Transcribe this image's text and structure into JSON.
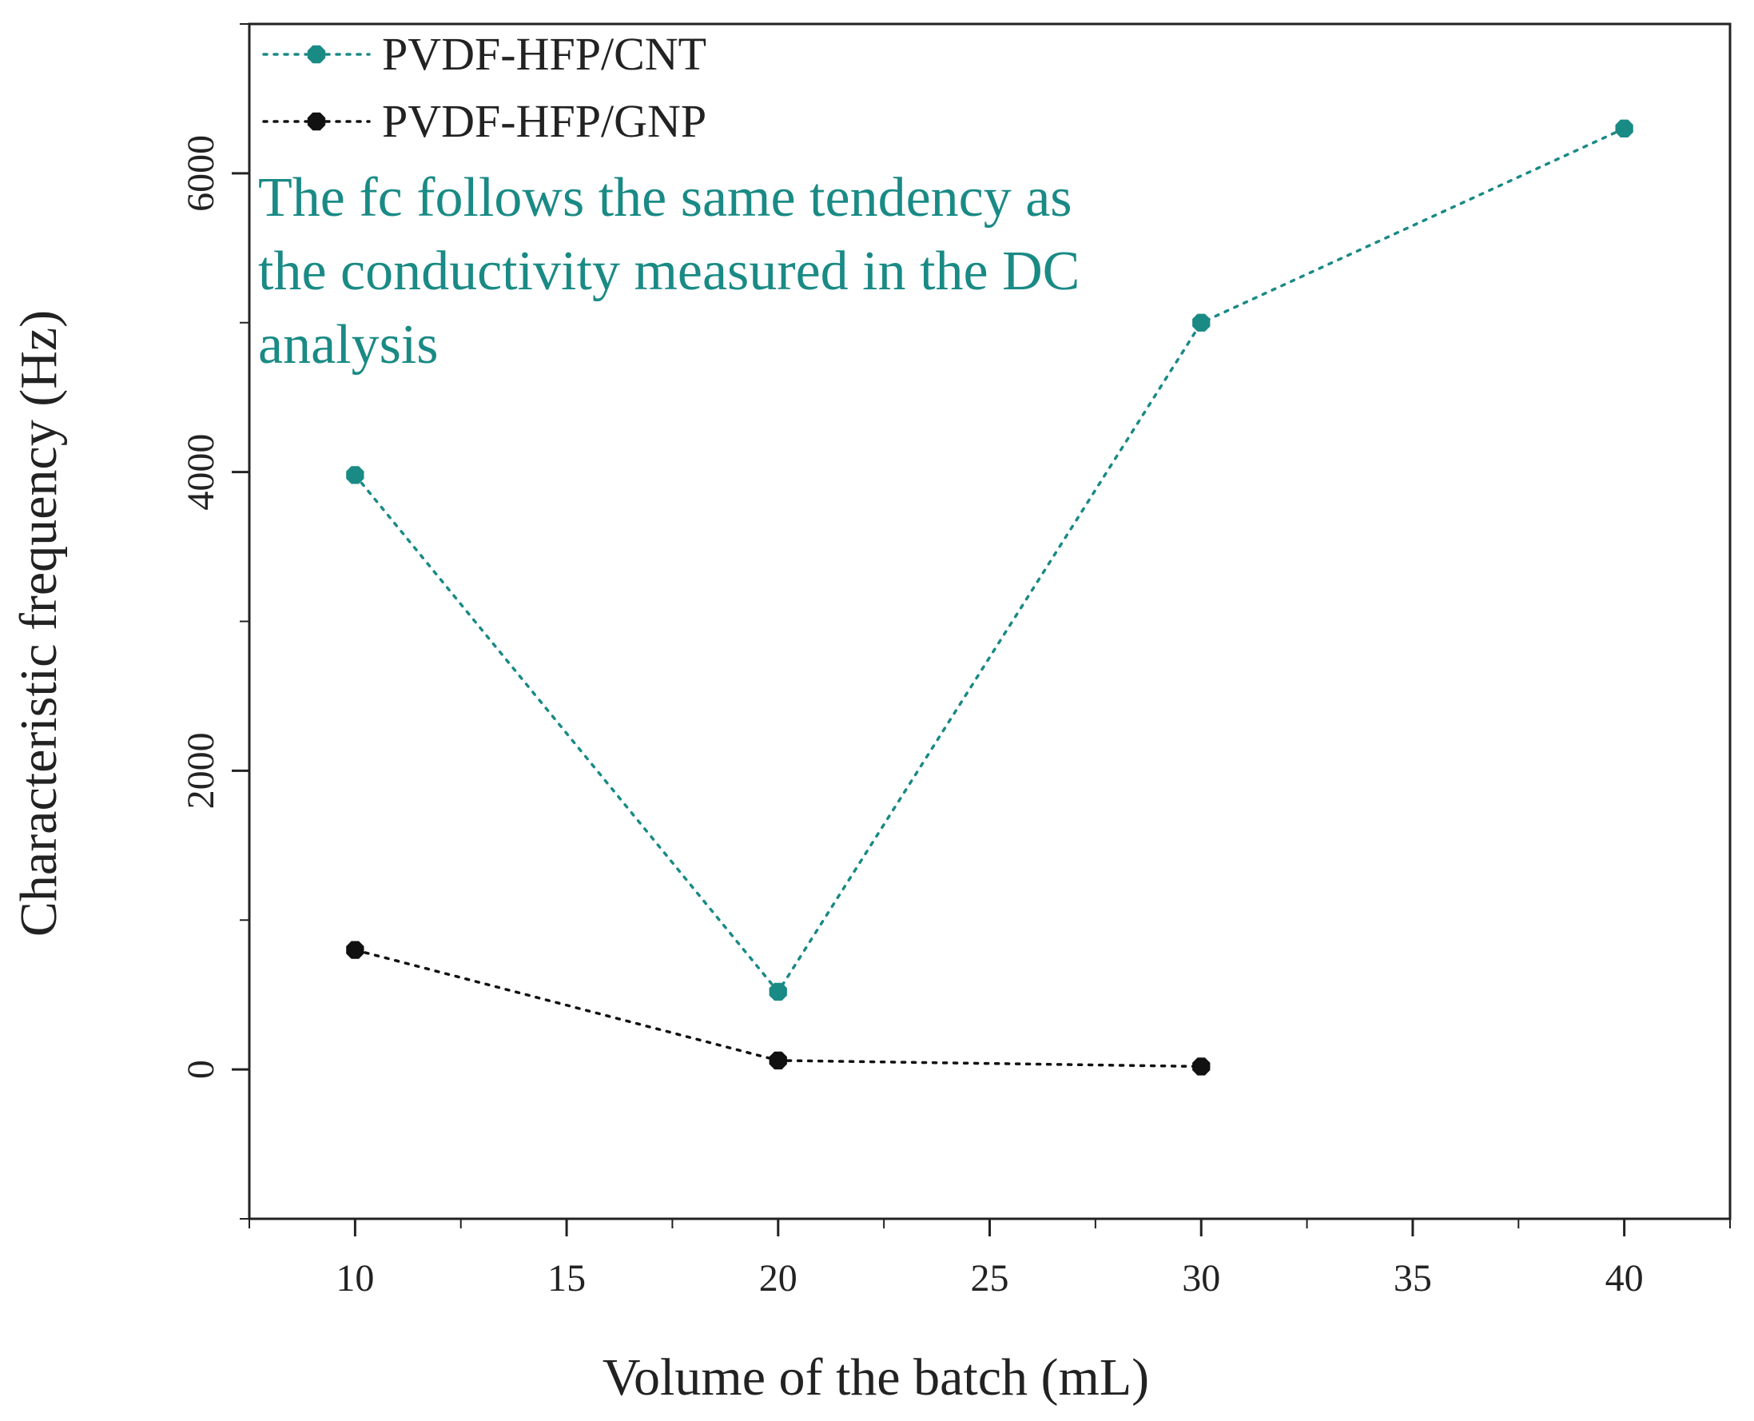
{
  "chart_data": {
    "type": "line",
    "title": "",
    "xlabel": "Volume of the batch (mL)",
    "ylabel": "Characteristic frequency (Hz)",
    "xlim": [
      7.5,
      42.5
    ],
    "ylim": [
      -1000,
      7000
    ],
    "xticks": [
      10,
      15,
      20,
      25,
      30,
      35,
      40
    ],
    "xtick_labels": [
      "10",
      "15",
      "20",
      "25",
      "30",
      "35",
      "40"
    ],
    "yticks": [
      0,
      2000,
      4000,
      6000
    ],
    "ytick_labels": [
      "0",
      "2000",
      "4000",
      "6000"
    ],
    "grid": false,
    "legend_position": "top-left",
    "series": [
      {
        "name": "PVDF-HFP/CNT",
        "color": "#1a8a85",
        "x": [
          10,
          20,
          30,
          40
        ],
        "values": [
          3980,
          520,
          5000,
          6300
        ]
      },
      {
        "name": "PVDF-HFP/GNP",
        "color": "#111111",
        "x": [
          10,
          20,
          30
        ],
        "values": [
          800,
          60,
          20
        ]
      }
    ],
    "annotation": {
      "lines": [
        "The fc follows the same tendency as",
        "the conductivity measured in the DC",
        "analysis"
      ],
      "color": "#1a8a85"
    }
  }
}
